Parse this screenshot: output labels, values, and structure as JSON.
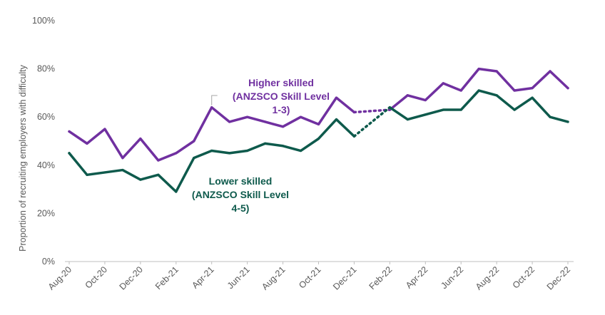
{
  "chart_data": {
    "type": "line",
    "ylabel": "Proportion of recruiting employers with difficulty",
    "xlabel": "",
    "ylim": [
      0,
      100
    ],
    "y_ticks": [
      "0%",
      "20%",
      "40%",
      "60%",
      "80%",
      "100%"
    ],
    "y_tick_values": [
      0,
      20,
      40,
      60,
      80,
      100
    ],
    "categories": [
      "Aug-20",
      "Sep-20",
      "Oct-20",
      "Nov-20",
      "Dec-20",
      "Jan-21",
      "Feb-21",
      "Mar-21",
      "Apr-21",
      "May-21",
      "Jun-21",
      "Jul-21",
      "Aug-21",
      "Sep-21",
      "Oct-21",
      "Nov-21",
      "Dec-21",
      "Jan-22",
      "Feb-22",
      "Mar-22",
      "Apr-22",
      "May-22",
      "Jun-22",
      "Jul-22",
      "Aug-22",
      "Sep-22",
      "Oct-22",
      "Nov-22",
      "Dec-22"
    ],
    "x_tick_labels": [
      "Aug-20",
      "Oct-20",
      "Dec-20",
      "Feb-21",
      "Apr-21",
      "Jun-21",
      "Aug-21",
      "Oct-21",
      "Dec-21",
      "Feb-22",
      "Apr-22",
      "Jun-22",
      "Aug-22",
      "Oct-22",
      "Dec-22"
    ],
    "grid": false,
    "dotted_gap": {
      "from": "Dec-21",
      "to": "Feb-22"
    },
    "series": [
      {
        "key": "higher",
        "name": "Higher skilled (ANZSCO Skill Level 1-3)",
        "color": "#7030A0",
        "values": [
          54,
          49,
          55,
          43,
          51,
          42,
          45,
          50,
          64,
          58,
          60,
          58,
          56,
          60,
          57,
          68,
          62,
          null,
          63,
          69,
          67,
          74,
          71,
          80,
          79,
          71,
          72,
          79,
          72
        ]
      },
      {
        "key": "lower",
        "name": "Lower skilled (ANZSCO Skill Level 4-5)",
        "color": "#0E5A4C",
        "values": [
          45,
          36,
          37,
          38,
          34,
          36,
          29,
          43,
          46,
          45,
          46,
          49,
          48,
          46,
          51,
          59,
          52,
          null,
          64,
          59,
          61,
          63,
          63,
          71,
          69,
          63,
          68,
          60,
          58
        ]
      }
    ],
    "annotations": {
      "higher_lines": [
        "Higher skilled",
        "(ANZSCO Skill Level",
        "1-3)"
      ],
      "lower_lines": [
        "Lower skilled",
        "(ANZSCO Skill Level",
        "4-5)"
      ]
    }
  }
}
